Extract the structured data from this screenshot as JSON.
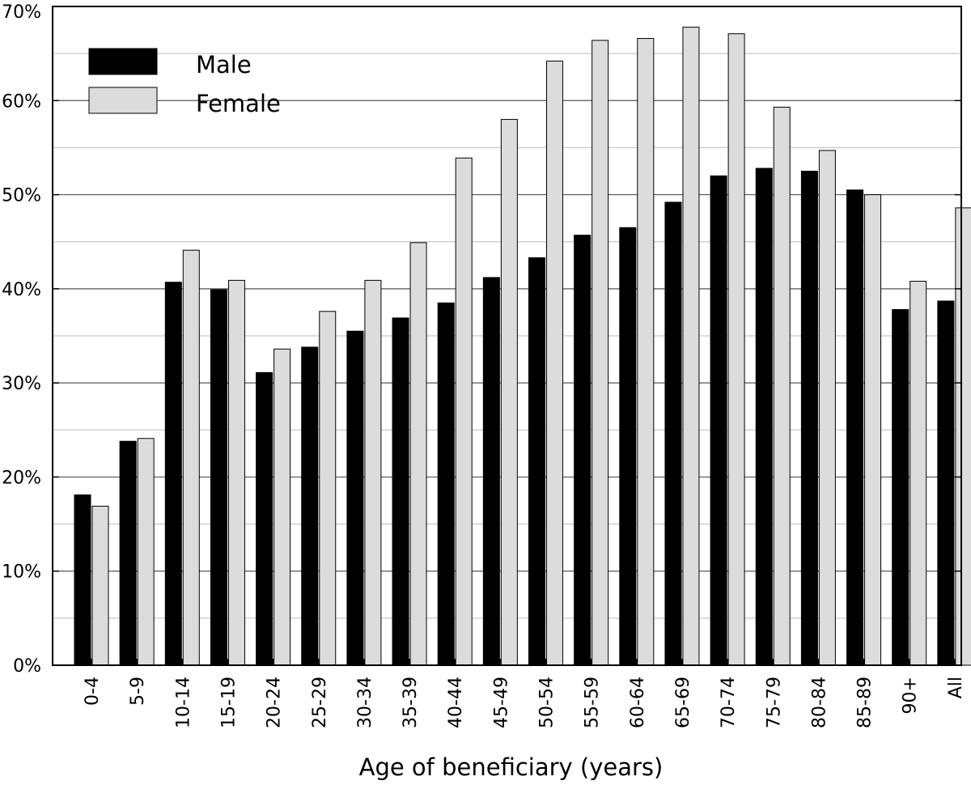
{
  "chart_data": {
    "type": "bar",
    "xlabel": "Age of beneficiary (years)",
    "ylabel": "",
    "ylim": [
      0,
      70
    ],
    "yticks": [
      0,
      10,
      20,
      30,
      40,
      50,
      60,
      70
    ],
    "ytick_labels": [
      "0%",
      "10%",
      "20%",
      "30%",
      "40%",
      "50%",
      "60%",
      "70%"
    ],
    "grid": "horizontal",
    "legend_position": "top-left",
    "categories": [
      "0-4",
      "5-9",
      "10-14",
      "15-19",
      "20-24",
      "25-29",
      "30-34",
      "35-39",
      "40-44",
      "45-49",
      "50-54",
      "55-59",
      "60-64",
      "65-69",
      "70-74",
      "75-79",
      "80-84",
      "85-89",
      "90+",
      "All"
    ],
    "series": [
      {
        "name": "Male",
        "color": "#000000",
        "values": [
          18.1,
          23.8,
          40.7,
          39.9,
          31.1,
          33.8,
          35.5,
          36.9,
          38.5,
          41.2,
          43.3,
          45.7,
          46.5,
          49.2,
          52.0,
          52.8,
          52.5,
          50.5,
          37.8,
          38.7
        ]
      },
      {
        "name": "Female",
        "color": "#dcdcdc",
        "values": [
          16.9,
          24.1,
          44.1,
          40.9,
          33.6,
          37.6,
          40.9,
          44.9,
          53.9,
          58.0,
          64.2,
          66.4,
          66.6,
          67.8,
          67.1,
          59.3,
          54.7,
          50.0,
          40.8,
          48.6
        ]
      }
    ]
  }
}
